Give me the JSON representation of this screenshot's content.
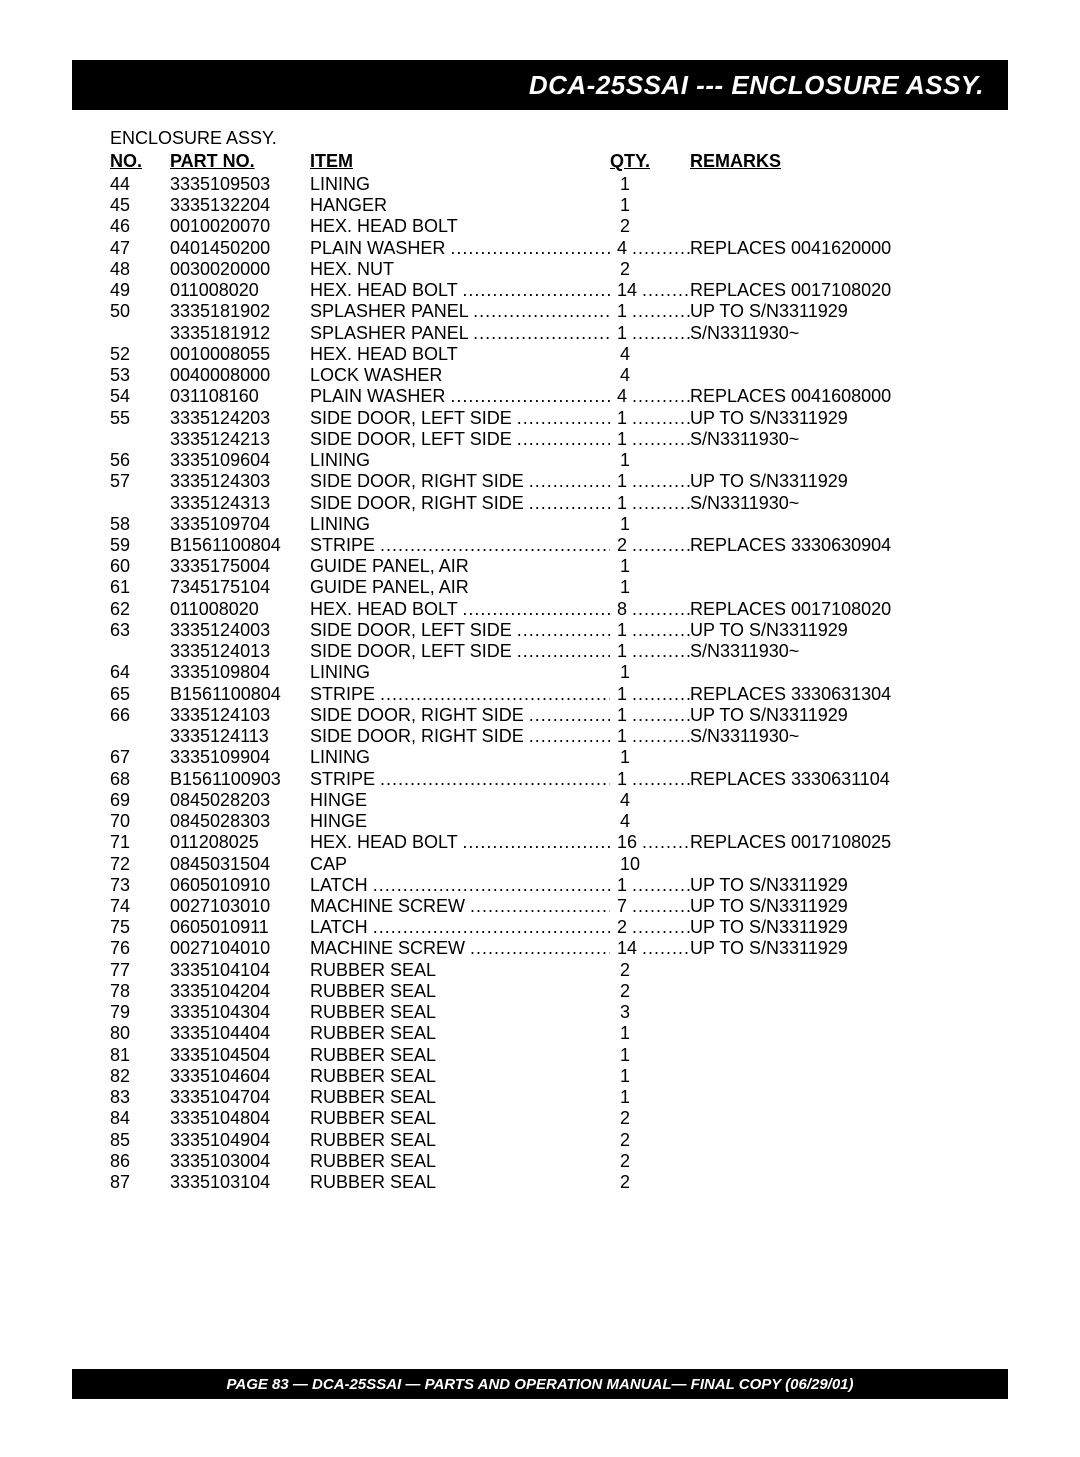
{
  "title": "DCA-25SSAI --- ENCLOSURE ASSY.",
  "section_title": "ENCLOSURE ASSY.",
  "headers": {
    "no": "NO.",
    "part": "PART NO.",
    "item": "ITEM",
    "qty": "QTY.",
    "remarks": "REMARKS"
  },
  "footer": "PAGE 83 — DCA-25SSAI — PARTS AND OPERATION  MANUAL— FINAL COPY  (06/29/01)",
  "rows": [
    {
      "no": "44",
      "part": "3335109503",
      "item": "LINING",
      "qty": "1",
      "rem": "",
      "dotted": false
    },
    {
      "no": "45",
      "part": "3335132204",
      "item": "HANGER",
      "qty": "1",
      "rem": "",
      "dotted": false
    },
    {
      "no": "46",
      "part": "0010020070",
      "item": "HEX. HEAD BOLT",
      "qty": "2",
      "rem": "",
      "dotted": false
    },
    {
      "no": "47",
      "part": "0401450200",
      "item": "PLAIN WASHER",
      "qty": "4",
      "rem": "REPLACES 0041620000",
      "dotted": true
    },
    {
      "no": "48",
      "part": "0030020000",
      "item": "HEX. NUT",
      "qty": "2",
      "rem": "",
      "dotted": false
    },
    {
      "no": "49",
      "part": "011008020",
      "item": "HEX. HEAD BOLT",
      "qty": "14",
      "rem": "REPLACES 0017108020",
      "dotted": true
    },
    {
      "no": "50",
      "part": "3335181902",
      "item": "SPLASHER PANEL",
      "qty": "1",
      "rem": "UP TO S/N3311929",
      "dotted": true
    },
    {
      "no": "",
      "part": "3335181912",
      "item": "SPLASHER PANEL",
      "qty": "1",
      "rem": "S/N3311930~",
      "dotted": true
    },
    {
      "no": "52",
      "part": "0010008055",
      "item": "HEX. HEAD BOLT",
      "qty": "4",
      "rem": "",
      "dotted": false
    },
    {
      "no": "53",
      "part": "0040008000",
      "item": "LOCK WASHER",
      "qty": "4",
      "rem": "",
      "dotted": false
    },
    {
      "no": "54",
      "part": "031108160",
      "item": "PLAIN WASHER",
      "qty": "4",
      "rem": "REPLACES 0041608000",
      "dotted": true
    },
    {
      "no": "55",
      "part": "3335124203",
      "item": "SIDE DOOR, LEFT SIDE",
      "qty": "1",
      "rem": "UP TO S/N3311929",
      "dotted": true
    },
    {
      "no": "",
      "part": "3335124213",
      "item": "SIDE DOOR, LEFT SIDE",
      "qty": "1",
      "rem": "S/N3311930~",
      "dotted": true
    },
    {
      "no": "56",
      "part": "3335109604",
      "item": "LINING",
      "qty": "1",
      "rem": "",
      "dotted": false
    },
    {
      "no": "57",
      "part": "3335124303",
      "item": "SIDE DOOR, RIGHT SIDE",
      "qty": "1",
      "rem": "UP TO S/N3311929",
      "dotted": true
    },
    {
      "no": "",
      "part": "3335124313",
      "item": "SIDE DOOR, RIGHT SIDE",
      "qty": "1",
      "rem": "S/N3311930~",
      "dotted": true
    },
    {
      "no": "58",
      "part": "3335109704",
      "item": "LINING",
      "qty": "1",
      "rem": "",
      "dotted": false
    },
    {
      "no": "59",
      "part": "B1561100804",
      "item": "STRIPE",
      "qty": "2",
      "rem": "REPLACES 3330630904",
      "dotted": true
    },
    {
      "no": "60",
      "part": "3335175004",
      "item": "GUIDE PANEL, AIR",
      "qty": "1",
      "rem": "",
      "dotted": false
    },
    {
      "no": "61",
      "part": "7345175104",
      "item": "GUIDE PANEL, AIR",
      "qty": "1",
      "rem": "",
      "dotted": false
    },
    {
      "no": "62",
      "part": "011008020",
      "item": "HEX. HEAD BOLT",
      "qty": "8",
      "rem": "REPLACES 0017108020",
      "dotted": true
    },
    {
      "no": "63",
      "part": "3335124003",
      "item": "SIDE DOOR, LEFT SIDE",
      "qty": "1",
      "rem": "UP TO S/N3311929",
      "dotted": true
    },
    {
      "no": "",
      "part": "3335124013",
      "item": "SIDE DOOR, LEFT SIDE",
      "qty": "1",
      "rem": "S/N3311930~",
      "dotted": true
    },
    {
      "no": "64",
      "part": "3335109804",
      "item": "LINING",
      "qty": "1",
      "rem": "",
      "dotted": false
    },
    {
      "no": "65",
      "part": "B1561100804",
      "item": "STRIPE",
      "qty": "1",
      "rem": "REPLACES 3330631304",
      "dotted": true
    },
    {
      "no": "66",
      "part": "3335124103",
      "item": "SIDE DOOR, RIGHT SIDE",
      "qty": "1",
      "rem": "UP TO S/N3311929",
      "dotted": true
    },
    {
      "no": "",
      "part": "3335124113",
      "item": "SIDE DOOR, RIGHT SIDE",
      "qty": "1",
      "rem": "S/N3311930~",
      "dotted": true
    },
    {
      "no": "67",
      "part": "3335109904",
      "item": "LINING",
      "qty": "1",
      "rem": "",
      "dotted": false
    },
    {
      "no": "68",
      "part": "B1561100903",
      "item": "STRIPE",
      "qty": "1",
      "rem": "REPLACES 3330631104",
      "dotted": true
    },
    {
      "no": "69",
      "part": "0845028203",
      "item": "HINGE",
      "qty": "4",
      "rem": "",
      "dotted": false
    },
    {
      "no": "70",
      "part": "0845028303",
      "item": "HINGE",
      "qty": "4",
      "rem": "",
      "dotted": false
    },
    {
      "no": "71",
      "part": "011208025",
      "item": "HEX. HEAD BOLT",
      "qty": "16",
      "rem": "REPLACES 0017108025",
      "dotted": true
    },
    {
      "no": "72",
      "part": "0845031504",
      "item": "CAP",
      "qty": "10",
      "rem": "",
      "dotted": false
    },
    {
      "no": "73",
      "part": "0605010910",
      "item": "LATCH",
      "qty": "1",
      "rem": "UP TO S/N3311929",
      "dotted": true
    },
    {
      "no": "74",
      "part": "0027103010",
      "item": "MACHINE SCREW",
      "qty": "7",
      "rem": "UP TO S/N3311929",
      "dotted": true
    },
    {
      "no": "75",
      "part": "0605010911",
      "item": "LATCH",
      "qty": "2",
      "rem": "UP TO S/N3311929",
      "dotted": true
    },
    {
      "no": "76",
      "part": "0027104010",
      "item": "MACHINE SCREW",
      "qty": "14",
      "rem": "UP TO S/N3311929",
      "dotted": true
    },
    {
      "no": "77",
      "part": "3335104104",
      "item": "RUBBER SEAL",
      "qty": "2",
      "rem": "",
      "dotted": false
    },
    {
      "no": "78",
      "part": "3335104204",
      "item": "RUBBER SEAL",
      "qty": "2",
      "rem": "",
      "dotted": false
    },
    {
      "no": "79",
      "part": "3335104304",
      "item": "RUBBER SEAL",
      "qty": "3",
      "rem": "",
      "dotted": false
    },
    {
      "no": "80",
      "part": "3335104404",
      "item": "RUBBER SEAL",
      "qty": "1",
      "rem": "",
      "dotted": false
    },
    {
      "no": "81",
      "part": "3335104504",
      "item": "RUBBER SEAL",
      "qty": "1",
      "rem": "",
      "dotted": false
    },
    {
      "no": "82",
      "part": "3335104604",
      "item": "RUBBER SEAL",
      "qty": "1",
      "rem": "",
      "dotted": false
    },
    {
      "no": "83",
      "part": "3335104704",
      "item": "RUBBER SEAL",
      "qty": "1",
      "rem": "",
      "dotted": false
    },
    {
      "no": "84",
      "part": "3335104804",
      "item": "RUBBER SEAL",
      "qty": "2",
      "rem": "",
      "dotted": false
    },
    {
      "no": "85",
      "part": "3335104904",
      "item": "RUBBER SEAL",
      "qty": "2",
      "rem": "",
      "dotted": false
    },
    {
      "no": "86",
      "part": "3335103004",
      "item": "RUBBER SEAL",
      "qty": "2",
      "rem": "",
      "dotted": false
    },
    {
      "no": "87",
      "part": "3335103104",
      "item": "RUBBER SEAL",
      "qty": "2",
      "rem": "",
      "dotted": false
    }
  ]
}
